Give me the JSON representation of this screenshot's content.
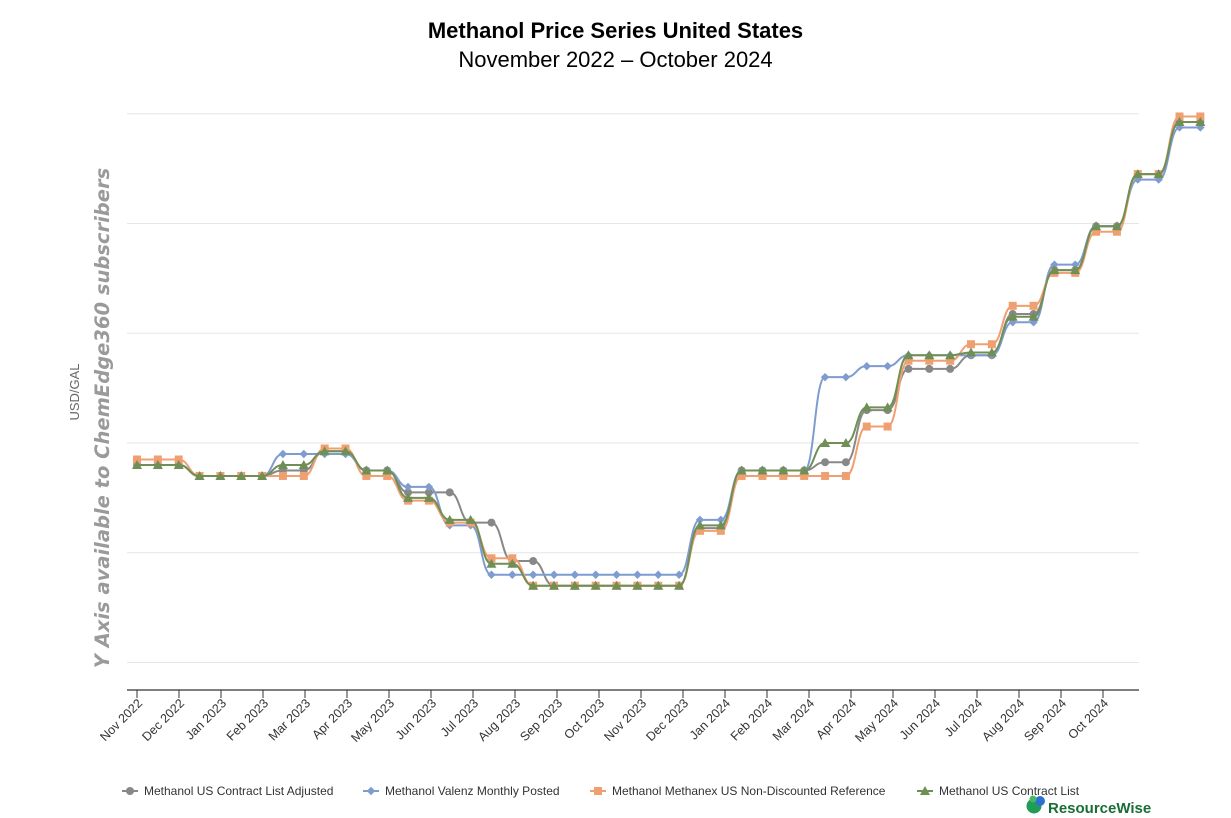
{
  "chart_data": {
    "type": "line",
    "title": "Methanol Price Series United States",
    "subtitle": "November 2022 – October 2024",
    "ylabel": "USD/GAL",
    "y_axis_note": "Y Axis available to ChemEdge360 subscribers",
    "y_tick_labels_visible": false,
    "grid": true,
    "legend_position": "bottom",
    "x_label_months": [
      "Nov 2022",
      "Dec 2022",
      "Jan 2023",
      "Feb 2023",
      "Mar 2023",
      "Apr 2023",
      "May 2023",
      "Jun 2023",
      "Jul 2023",
      "Aug 2023",
      "Sep 2023",
      "Oct 2023",
      "Nov 2023",
      "Dec 2023",
      "Jan 2024",
      "Feb 2024",
      "Mar 2024",
      "Apr 2024",
      "May 2024",
      "Jun 2024",
      "Jul 2024",
      "Aug 2024",
      "Sep 2024",
      "Oct 2024"
    ],
    "series": [
      {
        "name": "Methanol US Contract List Adjusted",
        "color": "#888888",
        "marker": "circle",
        "values": [
          1.82,
          1.82,
          1.82,
          1.78,
          1.78,
          1.78,
          1.78,
          1.8,
          1.8,
          1.87,
          1.87,
          1.8,
          1.8,
          1.72,
          1.72,
          1.72,
          1.61,
          1.61,
          1.47,
          1.47,
          1.38,
          1.38,
          1.38,
          1.38,
          1.38,
          1.38,
          1.38,
          1.59,
          1.59,
          1.8,
          1.8,
          1.8,
          1.8,
          1.83,
          1.83,
          2.02,
          2.02,
          2.17,
          2.17,
          2.17,
          2.22,
          2.22,
          2.37,
          2.37,
          2.53,
          2.53,
          2.69,
          2.69,
          2.88,
          2.88,
          3.07,
          3.07
        ],
        "positions": [
          0,
          0.5,
          1,
          1.5,
          2,
          2.5,
          3,
          3.5,
          4,
          4.5,
          5,
          5.5,
          6,
          6.5,
          7,
          7.5,
          8,
          8.5,
          9,
          9.5,
          10,
          10.5,
          11,
          11.5,
          12,
          12.5,
          13,
          13.5,
          14,
          14.5,
          15,
          15.5,
          16,
          16.5,
          17,
          17.5,
          18,
          18.5,
          19,
          19.5,
          20,
          20.5,
          21,
          21.5,
          22,
          22.5,
          23,
          23.5,
          24,
          24.5,
          25,
          25.5
        ]
      },
      {
        "name": "Methanol Valenz Monthly Posted",
        "color": "#7f9cd1",
        "marker": "diamond",
        "values": [
          1.82,
          1.82,
          1.82,
          1.78,
          1.78,
          1.78,
          1.78,
          1.86,
          1.86,
          1.86,
          1.86,
          1.8,
          1.8,
          1.74,
          1.74,
          1.6,
          1.6,
          1.42,
          1.42,
          1.42,
          1.42,
          1.42,
          1.42,
          1.42,
          1.42,
          1.42,
          1.42,
          1.62,
          1.62,
          1.8,
          1.8,
          1.8,
          1.8,
          2.14,
          2.14,
          2.18,
          2.18,
          2.22,
          2.22,
          2.22,
          2.22,
          2.22,
          2.34,
          2.34,
          2.55,
          2.55,
          2.69,
          2.69,
          2.86,
          2.86,
          3.05,
          3.05
        ],
        "positions": [
          0,
          0.5,
          1,
          1.5,
          2,
          2.5,
          3,
          3.5,
          4,
          4.5,
          5,
          5.5,
          6,
          6.5,
          7,
          7.5,
          8,
          8.5,
          9,
          9.5,
          10,
          10.5,
          11,
          11.5,
          12,
          12.5,
          13,
          13.5,
          14,
          14.5,
          15,
          15.5,
          16,
          16.5,
          17,
          17.5,
          18,
          18.5,
          19,
          19.5,
          20,
          20.5,
          21,
          21.5,
          22,
          22.5,
          23,
          23.5,
          24,
          24.5,
          25,
          25.5
        ]
      },
      {
        "name": "Methanol Methanex US Non-Discounted Reference",
        "color": "#f0a070",
        "marker": "square",
        "values": [
          1.84,
          1.84,
          1.84,
          1.78,
          1.78,
          1.78,
          1.78,
          1.78,
          1.78,
          1.88,
          1.88,
          1.78,
          1.78,
          1.69,
          1.69,
          1.61,
          1.61,
          1.48,
          1.48,
          1.38,
          1.38,
          1.38,
          1.38,
          1.38,
          1.38,
          1.38,
          1.38,
          1.58,
          1.58,
          1.78,
          1.78,
          1.78,
          1.78,
          1.78,
          1.78,
          1.96,
          1.96,
          2.2,
          2.2,
          2.2,
          2.26,
          2.26,
          2.4,
          2.4,
          2.52,
          2.52,
          2.67,
          2.67,
          2.88,
          2.88,
          3.09,
          3.09
        ],
        "positions": [
          0,
          0.5,
          1,
          1.5,
          2,
          2.5,
          3,
          3.5,
          4,
          4.5,
          5,
          5.5,
          6,
          6.5,
          7,
          7.5,
          8,
          8.5,
          9,
          9.5,
          10,
          10.5,
          11,
          11.5,
          12,
          12.5,
          13,
          13.5,
          14,
          14.5,
          15,
          15.5,
          16,
          16.5,
          17,
          17.5,
          18,
          18.5,
          19,
          19.5,
          20,
          20.5,
          21,
          21.5,
          22,
          22.5,
          23,
          23.5,
          24,
          24.5,
          25,
          25.5
        ]
      },
      {
        "name": "Methanol US Contract List",
        "color": "#6f8f55",
        "marker": "triangle",
        "values": [
          1.82,
          1.82,
          1.82,
          1.78,
          1.78,
          1.78,
          1.78,
          1.82,
          1.82,
          1.87,
          1.87,
          1.8,
          1.8,
          1.7,
          1.7,
          1.62,
          1.62,
          1.46,
          1.46,
          1.38,
          1.38,
          1.38,
          1.38,
          1.38,
          1.38,
          1.38,
          1.38,
          1.6,
          1.6,
          1.8,
          1.8,
          1.8,
          1.8,
          1.9,
          1.9,
          2.03,
          2.03,
          2.22,
          2.22,
          2.22,
          2.23,
          2.23,
          2.36,
          2.36,
          2.53,
          2.53,
          2.69,
          2.69,
          2.88,
          2.88,
          3.07,
          3.07
        ],
        "positions": [
          0,
          0.5,
          1,
          1.5,
          2,
          2.5,
          3,
          3.5,
          4,
          4.5,
          5,
          5.5,
          6,
          6.5,
          7,
          7.5,
          8,
          8.5,
          9,
          9.5,
          10,
          10.5,
          11,
          11.5,
          12,
          12.5,
          13,
          13.5,
          14,
          14.5,
          15,
          15.5,
          16,
          16.5,
          17,
          17.5,
          18,
          18.5,
          19,
          19.5,
          20,
          20.5,
          21,
          21.5,
          22,
          22.5,
          23,
          23.5,
          24,
          24.5,
          25,
          25.5
        ]
      }
    ]
  },
  "brand": {
    "logo_text": "ResourceWise",
    "logo_colors": [
      "#1f9d55",
      "#2f6fd0"
    ]
  }
}
